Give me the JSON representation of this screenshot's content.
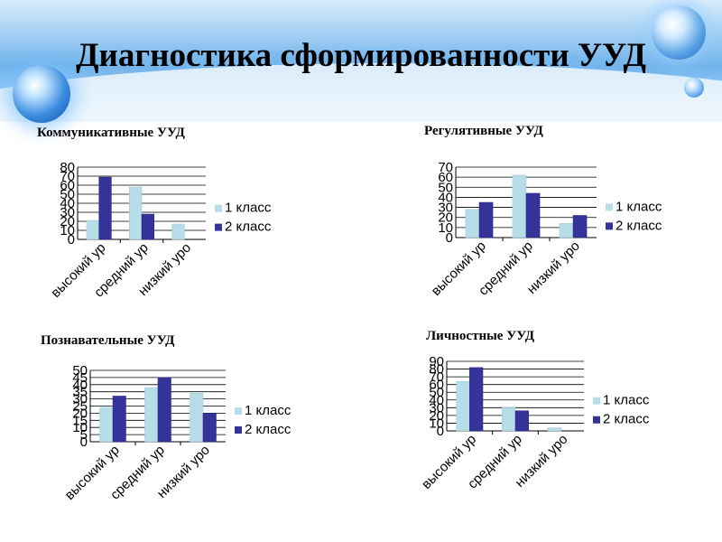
{
  "header": {
    "title": "Диагностика сформированности УУД"
  },
  "colors": {
    "series1": "#b7dee8",
    "series2": "#333399",
    "grid": "#000000"
  },
  "chart_data": [
    {
      "id": "communicative",
      "type": "bar",
      "title": "Коммуникативные УУД",
      "categories": [
        "высокий ур",
        "средний ур",
        "низкий урo"
      ],
      "series": [
        {
          "name": "1 класс",
          "values": [
            21,
            58,
            17
          ]
        },
        {
          "name": "2 класс",
          "values": [
            69,
            28,
            0
          ]
        }
      ],
      "ylim": [
        0,
        80
      ],
      "yticks": [
        0,
        10,
        20,
        30,
        40,
        50,
        60,
        70,
        80
      ],
      "grid": true,
      "legend": "right"
    },
    {
      "id": "regulatory",
      "type": "bar",
      "title": "Регулятивные УУД",
      "categories": [
        "высокий ур",
        "средний ур",
        "низкий урo"
      ],
      "series": [
        {
          "name": "1 класс",
          "values": [
            28,
            62,
            14
          ]
        },
        {
          "name": "2 класс",
          "values": [
            35,
            44,
            22
          ]
        }
      ],
      "ylim": [
        0,
        70
      ],
      "yticks": [
        0,
        10,
        20,
        30,
        40,
        50,
        60,
        70
      ],
      "grid": true,
      "legend": "right"
    },
    {
      "id": "cognitive",
      "type": "bar",
      "title": "Познавательные УУД",
      "categories": [
        "высокий ур",
        "средний ур",
        "низкий урo"
      ],
      "series": [
        {
          "name": "1 класс",
          "values": [
            24,
            38,
            34
          ]
        },
        {
          "name": "2 класс",
          "values": [
            32,
            45,
            20
          ]
        }
      ],
      "ylim": [
        0,
        50
      ],
      "yticks": [
        0,
        5,
        10,
        15,
        20,
        25,
        30,
        35,
        40,
        45,
        50
      ],
      "grid": true,
      "legend": "right"
    },
    {
      "id": "personal",
      "type": "bar",
      "title": "Личностные УУД",
      "categories": [
        "высокий ур",
        "средний ур",
        "низкий урo"
      ],
      "series": [
        {
          "name": "1 класс",
          "values": [
            64,
            30,
            4
          ]
        },
        {
          "name": "2 класс",
          "values": [
            82,
            26,
            0
          ]
        }
      ],
      "ylim": [
        0,
        90
      ],
      "yticks": [
        0,
        10,
        20,
        30,
        40,
        50,
        60,
        70,
        80,
        90
      ],
      "grid": true,
      "legend": "right"
    }
  ]
}
